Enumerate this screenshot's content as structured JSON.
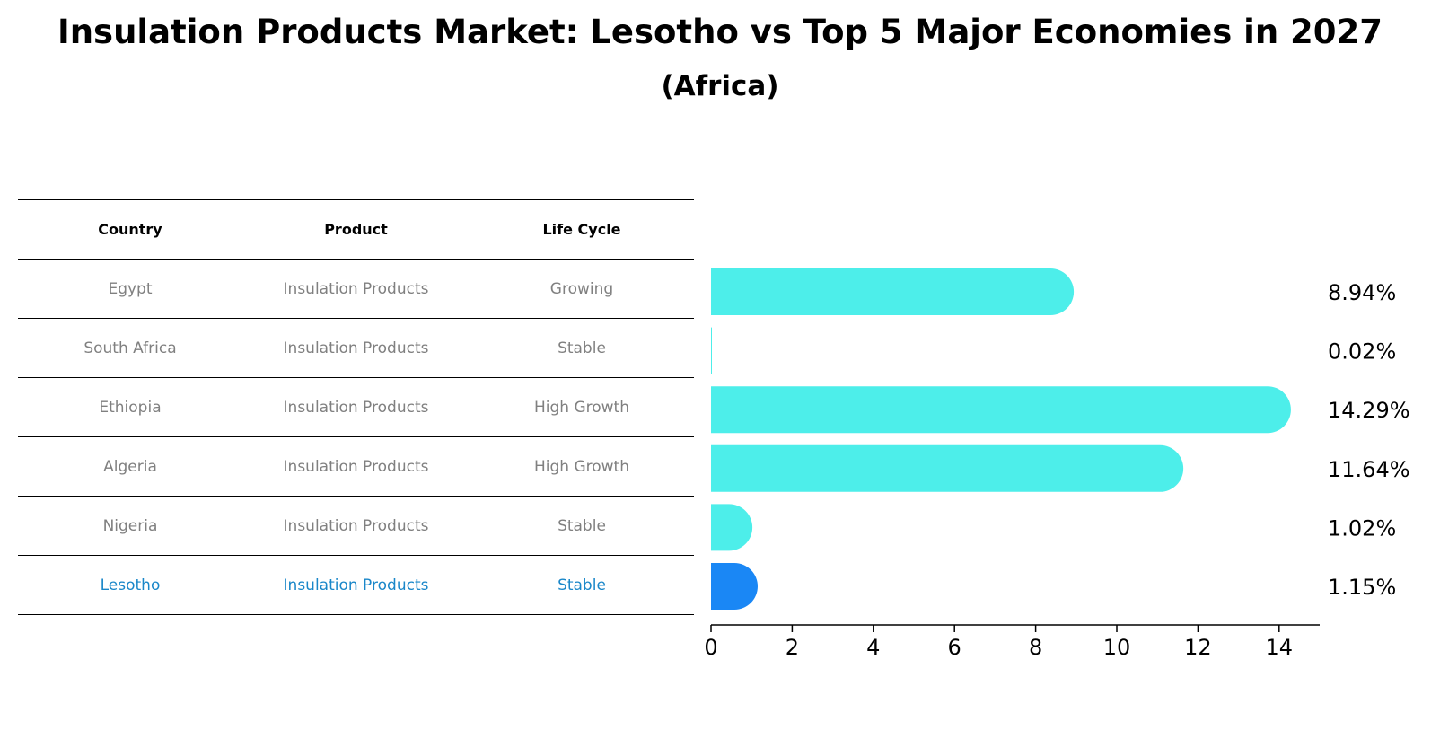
{
  "title": "Insulation Products Market: Lesotho vs Top 5 Major Economies in 2027",
  "subtitle": "(Africa)",
  "table": {
    "headers": [
      "Country",
      "Product",
      "Life Cycle"
    ],
    "rows": [
      [
        "Egypt",
        "Insulation Products",
        "Growing"
      ],
      [
        "South Africa",
        "Insulation Products",
        "Stable"
      ],
      [
        "Ethiopia",
        "Insulation Products",
        "High Growth"
      ],
      [
        "Algeria",
        "Insulation Products",
        "High Growth"
      ],
      [
        "Nigeria",
        "Insulation Products",
        "Stable"
      ],
      [
        "Lesotho",
        "Insulation Products",
        "Stable"
      ]
    ]
  },
  "chart_data": {
    "type": "bar",
    "orientation": "horizontal",
    "categories": [
      "Egypt",
      "South Africa",
      "Ethiopia",
      "Algeria",
      "Nigeria",
      "Lesotho"
    ],
    "values": [
      8.94,
      0.02,
      14.29,
      11.64,
      1.02,
      1.15
    ],
    "value_labels": [
      "8.94%",
      "0.02%",
      "14.29%",
      "11.64%",
      "1.02%",
      "1.15%"
    ],
    "highlight": "Lesotho",
    "xlim": [
      0,
      15
    ],
    "xticks": [
      0,
      2,
      4,
      6,
      8,
      10,
      12,
      14
    ],
    "xlabel": "",
    "ylabel": "",
    "colors": {
      "bar": "#4deeea",
      "highlight": "#1a87f5"
    }
  }
}
